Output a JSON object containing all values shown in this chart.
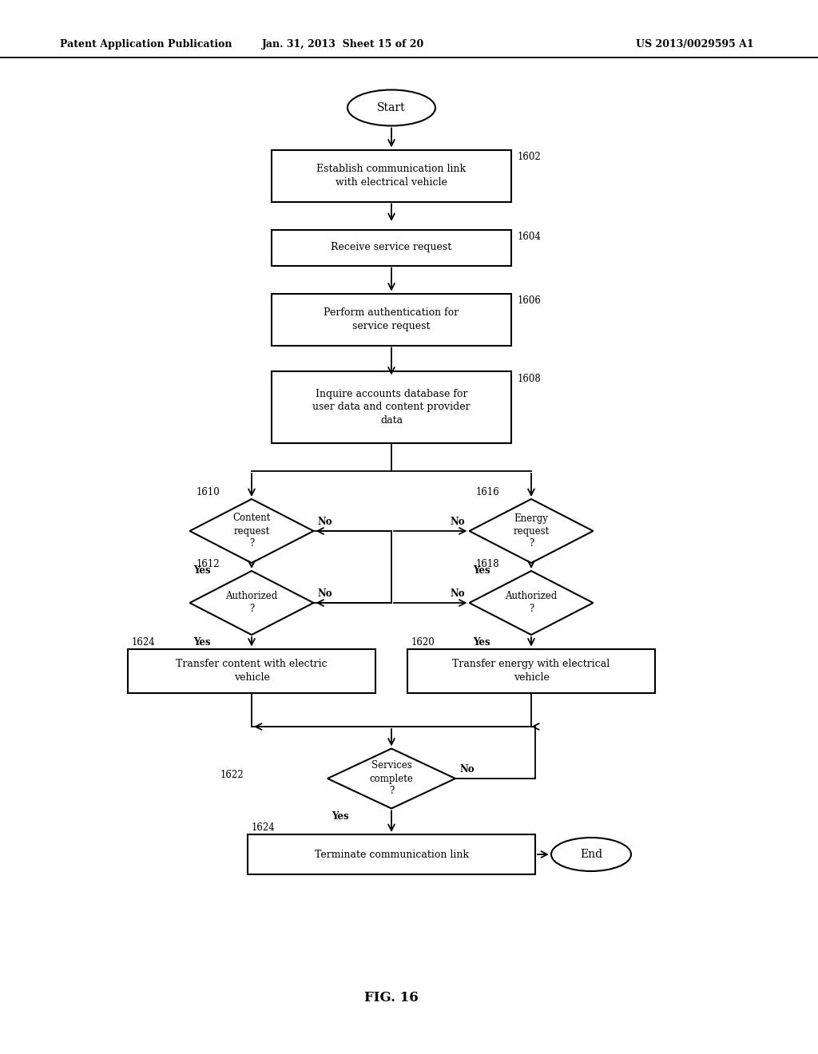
{
  "header_left": "Patent Application Publication",
  "header_mid": "Jan. 31, 2013  Sheet 15 of 20",
  "header_right": "US 2013/0029595 A1",
  "fig_label": "FIG. 16",
  "bg_color": "#ffffff",
  "line_color": "#000000",
  "text_color": "#000000"
}
